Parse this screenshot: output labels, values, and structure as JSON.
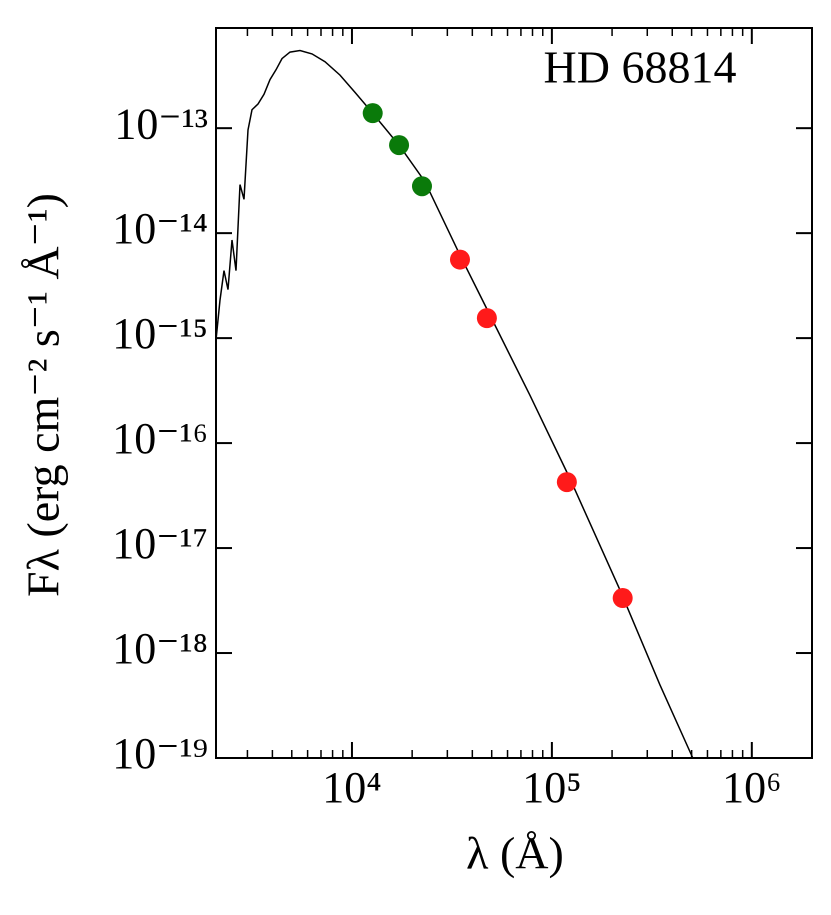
{
  "chart_data": {
    "type": "line",
    "title": "HD 68814",
    "xlabel": "λ (Å)",
    "ylabel": "Fλ (erg cm⁻² s⁻¹ Å⁻¹)",
    "xscale": "log",
    "yscale": "log",
    "xlim": [
      2089,
      2000000
    ],
    "ylim": [
      1e-19,
      9e-13
    ],
    "xticks": [
      {
        "value": 10000,
        "label": "10⁴"
      },
      {
        "value": 100000,
        "label": "10⁵"
      },
      {
        "value": 1000000,
        "label": "10⁶"
      }
    ],
    "xminorticks": [
      3000,
      4000,
      5000,
      6000,
      7000,
      8000,
      9000,
      20000,
      30000,
      40000,
      50000,
      60000,
      70000,
      80000,
      90000,
      200000,
      300000,
      400000,
      500000,
      600000,
      700000,
      800000,
      900000,
      2000000
    ],
    "yticks": [
      {
        "value": 1e-13,
        "label": "10⁻¹³"
      },
      {
        "value": 1e-14,
        "label": "10⁻¹⁴"
      },
      {
        "value": 1e-15,
        "label": "10⁻¹⁵"
      },
      {
        "value": 1e-16,
        "label": "10⁻¹⁶"
      },
      {
        "value": 1e-17,
        "label": "10⁻¹⁷"
      },
      {
        "value": 1e-18,
        "label": "10⁻¹⁸"
      },
      {
        "value": 1e-19,
        "label": "10⁻¹⁹"
      }
    ],
    "series": [
      {
        "type": "line",
        "color": "#000000",
        "x": [
          2089,
          2188,
          2291,
          2399,
          2512,
          2630,
          2754,
          2884,
          3020,
          3162,
          3388,
          3631,
          3890,
          4169,
          4467,
          4898,
          5495,
          6310,
          7328,
          8710,
          10350,
          12700,
          17380,
          23170,
          34670,
          48980,
          77620,
          123000,
          218800,
          346700,
          507000
        ],
        "values": [
          9.6e-16,
          2.3e-15,
          4.4e-15,
          2.9e-15,
          8.6e-15,
          4.4e-15,
          2.9e-14,
          2.1e-14,
          9.6e-14,
          1.5e-13,
          1.7e-13,
          2.1e-13,
          2.9e-13,
          3.6e-13,
          4.6e-13,
          5.3e-13,
          5.5e-13,
          5.1e-13,
          4.3e-13,
          3.2e-13,
          2.2e-13,
          1.39e-13,
          6.7e-14,
          3.1e-14,
          6.2e-15,
          1.66e-15,
          2.86e-16,
          4.6e-17,
          4e-18,
          5e-19,
          1e-19
        ]
      },
      {
        "type": "scatter",
        "color": "#0a7a0a",
        "x": [
          12700,
          17200,
          22400
        ],
        "values": [
          1.39e-13,
          6.9e-14,
          2.8e-14
        ]
      },
      {
        "type": "scatter",
        "color": "#ff1a1a",
        "x": [
          34700,
          47300,
          118800,
          226000
        ],
        "values": [
          5.6e-15,
          1.55e-15,
          4.25e-17,
          3.34e-18
        ]
      }
    ]
  }
}
